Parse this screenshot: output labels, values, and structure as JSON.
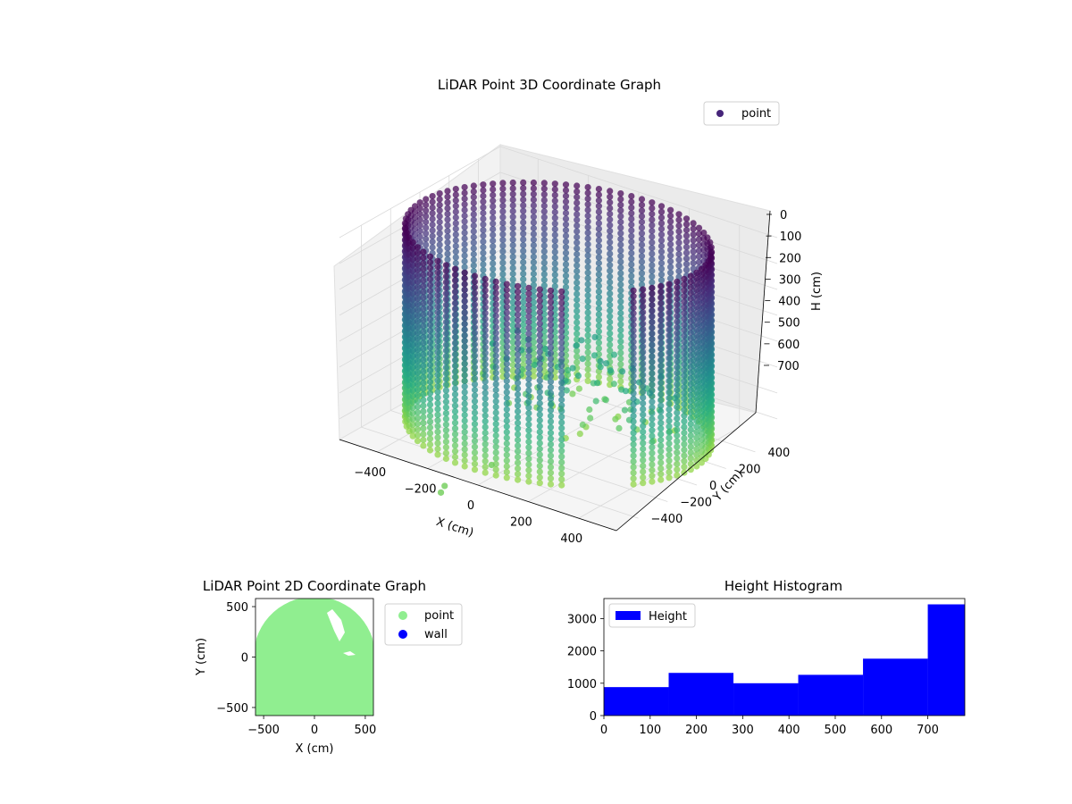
{
  "chart_data": [
    {
      "type": "scatter",
      "projection": "3d",
      "title": "LiDAR Point 3D Coordinate Graph",
      "xlabel": "X (cm)",
      "ylabel": "Y (cm)",
      "zlabel": "H (cm)",
      "xticks": [
        "−400",
        "−200",
        "0",
        "200",
        "400"
      ],
      "yticks": [
        "−400",
        "−200",
        "0",
        "200",
        "400"
      ],
      "zticks": [
        "0",
        "100",
        "200",
        "300",
        "400",
        "500",
        "600",
        "700"
      ],
      "xlim": [
        -550,
        550
      ],
      "ylim": [
        -550,
        550
      ],
      "zlim": [
        780,
        0
      ],
      "zaxis_inverted": true,
      "colormap": "viridis",
      "legend": [
        {
          "label": "point",
          "color": "#46257a"
        }
      ],
      "legend_position": "top-right",
      "grid": true,
      "series": [
        {
          "name": "point",
          "description_values": "ring of LiDAR returns around a room, radius ~450-550 cm, heights 0-780 cm"
        }
      ]
    },
    {
      "type": "scatter",
      "title": "LiDAR Point 2D Coordinate Graph",
      "xlabel": "X (cm)",
      "ylabel": "Y (cm)",
      "xticks": [
        "−500",
        "0",
        "500"
      ],
      "yticks": [
        "−500",
        "0",
        "500"
      ],
      "xlim": [
        -580,
        580
      ],
      "ylim": [
        -580,
        580
      ],
      "legend": [
        {
          "label": "point",
          "color": "#90ee90"
        },
        {
          "label": "wall",
          "color": "#0000ff"
        }
      ],
      "legend_position": "outside-right",
      "grid": false
    },
    {
      "type": "bar",
      "subtype": "histogram",
      "title": "Height Histogram",
      "xlabel": "",
      "ylabel": "",
      "bin_edges": [
        0,
        140,
        280,
        420,
        560,
        700,
        780
      ],
      "values": [
        880,
        1320,
        1000,
        1260,
        1760,
        3440
      ],
      "color": "#0000ff",
      "xticks": [
        "0",
        "100",
        "200",
        "300",
        "400",
        "500",
        "600",
        "700"
      ],
      "yticks": [
        "0",
        "1000",
        "2000",
        "3000"
      ],
      "xlim": [
        0,
        780
      ],
      "ylim": [
        0,
        3620
      ],
      "legend": [
        {
          "label": "Height",
          "color": "#0000ff"
        }
      ],
      "legend_position": "top-left",
      "grid": false
    }
  ]
}
